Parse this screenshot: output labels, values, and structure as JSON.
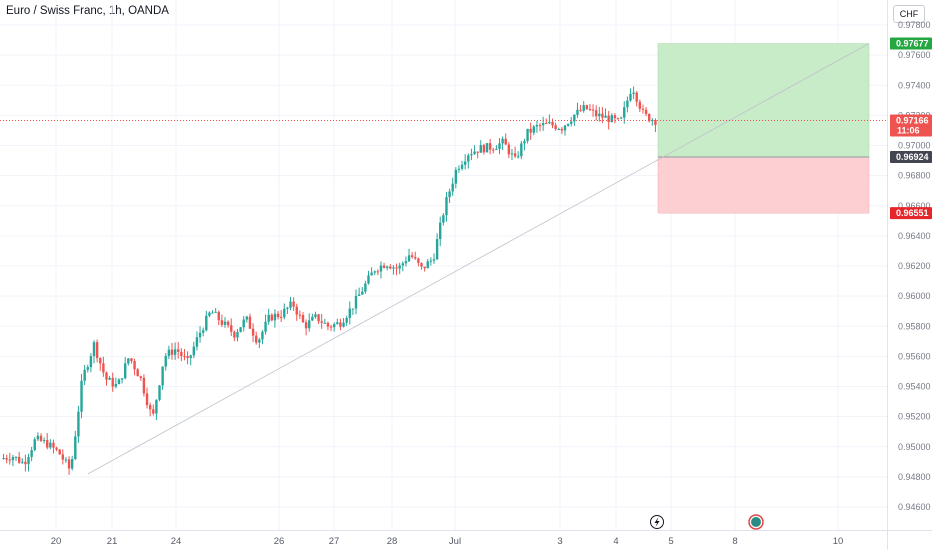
{
  "header": {
    "symbol_title": "Euro / Swiss Franc, 1h, OANDA",
    "currency_button": "CHF"
  },
  "colors": {
    "up_candle": "#26a69a",
    "down_candle": "#ef5350",
    "profit_zone": "#c8ebc8",
    "loss_zone": "#fcd0d3",
    "target_tag": "#26a641",
    "stop_tag": "#e5252a",
    "entry_tag": "#434651",
    "price_tag": "#ef5350"
  },
  "price_axis": {
    "ticks": [
      "0.97800",
      "0.97600",
      "0.97400",
      "0.97200",
      "0.97000",
      "0.96800",
      "0.96600",
      "0.96400",
      "0.96200",
      "0.96000",
      "0.95800",
      "0.95600",
      "0.95400",
      "0.95200",
      "0.95000",
      "0.94800",
      "0.94600"
    ]
  },
  "time_axis": {
    "labels": [
      "20",
      "21",
      "24",
      "26",
      "27",
      "28",
      "Jul",
      "3",
      "4",
      "5",
      "8",
      "10"
    ]
  },
  "tags": {
    "target": "0.97677",
    "last_price": "0.97166",
    "countdown": "11:06",
    "entry": "0.96924",
    "stop": "0.96551"
  },
  "markers": {
    "flash_icon": "lightning-icon",
    "event_icon": "event-dot-icon"
  },
  "chart_data": {
    "type": "candlestick",
    "title": "Euro / Swiss Franc, 1h, OANDA",
    "ylim": [
      0.9448,
      0.979
    ],
    "ylabel_position": "right",
    "grid": true,
    "x_ticks": [
      "20",
      "21",
      "24",
      "26",
      "27",
      "28",
      "Jul",
      "3",
      "4",
      "5",
      "8",
      "10"
    ],
    "series": [
      {
        "type": "close_path",
        "points": [
          [
            "20",
            0.9492
          ],
          [
            "20",
            0.9494
          ],
          [
            "20",
            0.9489
          ],
          [
            "20",
            0.9505
          ],
          [
            "20",
            0.9502
          ],
          [
            "20",
            0.9496
          ],
          [
            "21",
            0.9484
          ],
          [
            "21",
            0.9545
          ],
          [
            "21",
            0.9568
          ],
          [
            "21",
            0.9545
          ],
          [
            "21",
            0.954
          ],
          [
            "21",
            0.956
          ],
          [
            "24",
            0.9545
          ],
          [
            "24",
            0.9518
          ],
          [
            "24",
            0.956
          ],
          [
            "24",
            0.9565
          ],
          [
            "24",
            0.9556
          ],
          [
            "24",
            0.9575
          ],
          [
            "24",
            0.959
          ],
          [
            "24",
            0.9582
          ],
          [
            "26",
            0.9575
          ],
          [
            "26",
            0.9585
          ],
          [
            "26",
            0.957
          ],
          [
            "26",
            0.9586
          ],
          [
            "26",
            0.9588
          ],
          [
            "27",
            0.9595
          ],
          [
            "27",
            0.958
          ],
          [
            "27",
            0.9586
          ],
          [
            "27",
            0.958
          ],
          [
            "28",
            0.9582
          ],
          [
            "28",
            0.9592
          ],
          [
            "28",
            0.9605
          ],
          [
            "28",
            0.9618
          ],
          [
            "28",
            0.9622
          ],
          [
            "28",
            0.9618
          ],
          [
            "Jul",
            0.9628
          ],
          [
            "Jul",
            0.9618
          ],
          [
            "Jul",
            0.9625
          ],
          [
            "Jul",
            0.966
          ],
          [
            "Jul",
            0.9685
          ],
          [
            "Jul",
            0.9695
          ],
          [
            "Jul",
            0.9698
          ],
          [
            "Jul",
            0.9699
          ],
          [
            "Jul",
            0.9702
          ],
          [
            "3",
            0.969
          ],
          [
            "3",
            0.9708
          ],
          [
            "3",
            0.9713
          ],
          [
            "3",
            0.9714
          ],
          [
            "3",
            0.9712
          ],
          [
            "3",
            0.972
          ],
          [
            "4",
            0.9725
          ],
          [
            "4",
            0.972
          ],
          [
            "4",
            0.9718
          ],
          [
            "4",
            0.9715
          ],
          [
            "4",
            0.974
          ],
          [
            "4",
            0.972
          ],
          [
            "4",
            0.97166
          ]
        ]
      }
    ],
    "trendline": {
      "from": [
        "20",
        0.9482
      ],
      "to": [
        "10",
        0.97677
      ]
    },
    "position": {
      "side": "long",
      "entry": 0.96924,
      "target": 0.97677,
      "stop": 0.96551
    },
    "last_price": 0.97166
  }
}
